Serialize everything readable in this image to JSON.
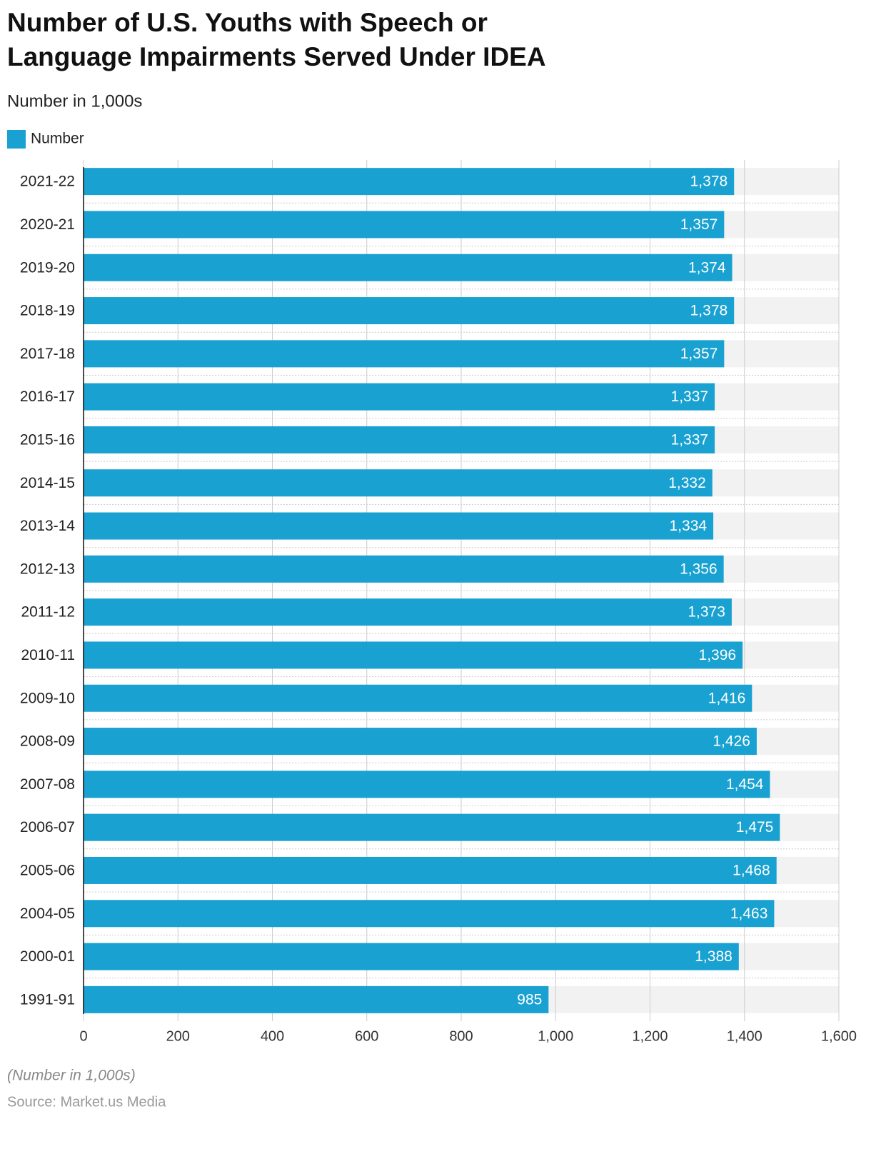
{
  "chart_data": {
    "type": "bar",
    "orientation": "horizontal",
    "title": "Number of U.S. Youths with Speech or Language Impairments Served Under IDEA",
    "subtitle": "Number in 1,000s",
    "note": "(Number in 1,000s)",
    "source": "Source: Market.us Media",
    "categories": [
      "2021-22",
      "2020-21",
      "2019-20",
      "2018-19",
      "2017-18",
      "2016-17",
      "2015-16",
      "2014-15",
      "2013-14",
      "2012-13",
      "2011-12",
      "2010-11",
      "2009-10",
      "2008-09",
      "2007-08",
      "2006-07",
      "2005-06",
      "2004-05",
      "2000-01",
      "1991-91"
    ],
    "series": [
      {
        "name": "Number",
        "color": "#19a1d1",
        "values": [
          1378,
          1357,
          1374,
          1378,
          1357,
          1337,
          1337,
          1332,
          1334,
          1356,
          1373,
          1396,
          1416,
          1426,
          1454,
          1475,
          1468,
          1463,
          1388,
          985
        ],
        "value_labels": [
          "1,378",
          "1,357",
          "1,374",
          "1,378",
          "1,357",
          "1,337",
          "1,337",
          "1,332",
          "1,334",
          "1,356",
          "1,373",
          "1,396",
          "1,416",
          "1,426",
          "1,454",
          "1,475",
          "1,468",
          "1,463",
          "1,388",
          "985"
        ]
      }
    ],
    "xlim": [
      0,
      1600
    ],
    "xticks": [
      0,
      200,
      400,
      600,
      800,
      {
        "value": 1000,
        "label": "1,000"
      },
      {
        "value": 1200,
        "label": "1,200"
      },
      {
        "value": 1400,
        "label": "1,400"
      },
      {
        "value": 1600,
        "label": "1,600"
      }
    ],
    "grid": true
  }
}
